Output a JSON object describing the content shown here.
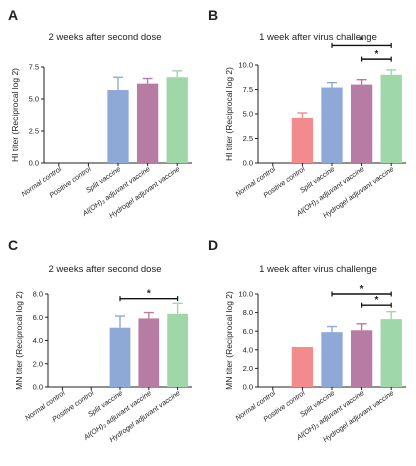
{
  "panels": [
    {
      "letter": "A",
      "title": "2 weeks after second dose",
      "ylabel": "HI titer (Reciprocal log 2)",
      "chart_type": "bar",
      "ylim": [
        0,
        7.5
      ],
      "yticks": [
        "0.0",
        "2.5",
        "5.0",
        "7.5"
      ],
      "categories": [
        "Normal control",
        "Positive control",
        "Split vaccine",
        "Al(OH)₃ adjuvant vaccine",
        "Hydrogel adjuvant vaccine"
      ],
      "values": [
        0,
        0,
        5.7,
        6.2,
        6.7
      ],
      "errors": [
        0,
        0,
        1.0,
        0.4,
        0.5
      ],
      "colors": [
        "#f28b8b",
        "#f28b8b",
        "#8fa9d6",
        "#b77ca4",
        "#9fd7a8"
      ],
      "significance": []
    },
    {
      "letter": "B",
      "title": "1 week after virus challenge",
      "ylabel": "HI titer (Reciprocal log 2)",
      "chart_type": "bar",
      "ylim": [
        0,
        10
      ],
      "yticks": [
        "0.0",
        "2.5",
        "5.0",
        "7.5",
        "10.0"
      ],
      "categories": [
        "Normal control",
        "Positive control",
        "Split vaccine",
        "Al(OH)₃ adjuvant vaccine",
        "Hydrogel adjuvant vaccine"
      ],
      "values": [
        0,
        4.6,
        7.7,
        8.0,
        9.0
      ],
      "errors": [
        0,
        0.5,
        0.5,
        0.5,
        0.5
      ],
      "colors": [
        "#f28b8b",
        "#f28b8b",
        "#8fa9d6",
        "#b77ca4",
        "#9fd7a8"
      ],
      "significance": [
        {
          "from": 2,
          "to": 4,
          "label": "*",
          "y": 12.0
        },
        {
          "from": 3,
          "to": 4,
          "label": "*",
          "y": 10.6
        }
      ]
    },
    {
      "letter": "C",
      "title": "2 weeks after second dose",
      "ylabel": "MN titer (Reciprocal log 2)",
      "chart_type": "bar",
      "ylim": [
        0,
        8
      ],
      "yticks": [
        "0.0",
        "2.0",
        "4.0",
        "6.0",
        "8.0"
      ],
      "categories": [
        "Normal control",
        "Positive control",
        "Split vaccine",
        "Al(OH)₃ adjuvant vaccine",
        "Hydrogel adjuvant vaccine"
      ],
      "values": [
        0,
        0,
        5.1,
        5.9,
        6.3
      ],
      "errors": [
        0,
        0,
        1.0,
        0.5,
        0.9
      ],
      "colors": [
        "#f28b8b",
        "#f28b8b",
        "#8fa9d6",
        "#b77ca4",
        "#9fd7a8"
      ],
      "significance": [
        {
          "from": 2,
          "to": 4,
          "label": "*",
          "y": 7.6
        }
      ]
    },
    {
      "letter": "D",
      "title": "1 week after virus challenge",
      "ylabel": "MN titer (Reciprocal log 2)",
      "chart_type": "bar",
      "ylim": [
        0,
        10
      ],
      "yticks": [
        "0.0",
        "2.0",
        "4.0",
        "6.0",
        "8.0",
        "10.0"
      ],
      "categories": [
        "Normal control",
        "Positive control",
        "Split vaccine",
        "Al(OH)₃ adjuvant vaccine",
        "Hydrogel adjuvant vaccine"
      ],
      "values": [
        0,
        4.3,
        5.9,
        6.1,
        7.3
      ],
      "errors": [
        0,
        0,
        0.6,
        0.7,
        0.8
      ],
      "colors": [
        "#f28b8b",
        "#f28b8b",
        "#8fa9d6",
        "#b77ca4",
        "#9fd7a8"
      ],
      "significance": [
        {
          "from": 2,
          "to": 4,
          "label": "*",
          "y": 10.0
        },
        {
          "from": 3,
          "to": 4,
          "label": "*",
          "y": 8.8
        }
      ]
    }
  ],
  "chart_data": [
    {
      "type": "bar",
      "title": "2 weeks after second dose",
      "xlabel": "",
      "ylabel": "HI titer (Reciprocal log 2)",
      "categories": [
        "Normal control",
        "Positive control",
        "Split vaccine",
        "Al(OH)₃ adjuvant vaccine",
        "Hydrogel adjuvant vaccine"
      ],
      "values": [
        0,
        0,
        5.7,
        6.2,
        6.7
      ],
      "ylim": [
        0,
        7.5
      ]
    },
    {
      "type": "bar",
      "title": "1 week after virus challenge",
      "xlabel": "",
      "ylabel": "HI titer (Reciprocal log 2)",
      "categories": [
        "Normal control",
        "Positive control",
        "Split vaccine",
        "Al(OH)₃ adjuvant vaccine",
        "Hydrogel adjuvant vaccine"
      ],
      "values": [
        0,
        4.6,
        7.7,
        8.0,
        9.0
      ],
      "ylim": [
        0,
        10
      ]
    },
    {
      "type": "bar",
      "title": "2 weeks after second dose",
      "xlabel": "",
      "ylabel": "MN titer (Reciprocal log 2)",
      "categories": [
        "Normal control",
        "Positive control",
        "Split vaccine",
        "Al(OH)₃ adjuvant vaccine",
        "Hydrogel adjuvant vaccine"
      ],
      "values": [
        0,
        0,
        5.1,
        5.9,
        6.3
      ],
      "ylim": [
        0,
        8
      ]
    },
    {
      "type": "bar",
      "title": "1 week after virus challenge",
      "xlabel": "",
      "ylabel": "MN titer (Reciprocal log 2)",
      "categories": [
        "Normal control",
        "Positive control",
        "Split vaccine",
        "Al(OH)₃ adjuvant vaccine",
        "Hydrogel adjuvant vaccine"
      ],
      "values": [
        0,
        4.3,
        5.9,
        6.1,
        7.3
      ],
      "ylim": [
        0,
        10
      ]
    }
  ]
}
